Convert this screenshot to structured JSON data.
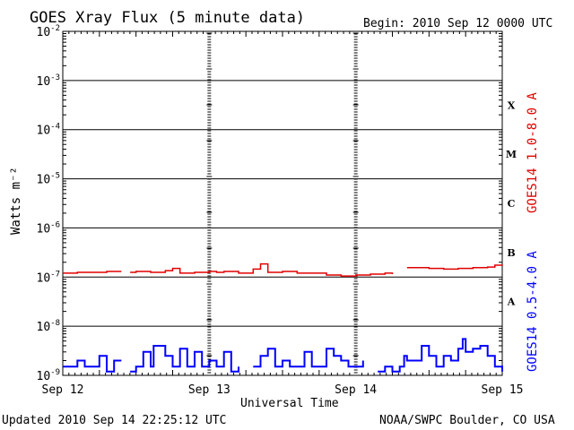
{
  "header": {
    "title": "GOES Xray Flux (5 minute data)",
    "begin": "Begin:  2010 Sep 12 0000 UTC"
  },
  "footer": {
    "updated": "Updated 2010 Sep 14 22:25:12 UTC",
    "credit": "NOAA/SWPC Boulder, CO USA"
  },
  "chart_data": {
    "type": "line",
    "title": "GOES Xray Flux (5 minute data)",
    "xlabel": "Universal Time",
    "ylabel": "Watts m⁻²",
    "y_scale": "log",
    "ylim": [
      1e-09,
      0.01
    ],
    "xlim": [
      "2010-09-12 00:00",
      "2010-09-15 00:00"
    ],
    "grid": true,
    "x_ticks": [
      "Sep 12",
      "Sep 13",
      "Sep 14",
      "Sep 15"
    ],
    "y_ticks": [
      {
        "value": 0.01,
        "base": "10",
        "exp": "-2"
      },
      {
        "value": 0.001,
        "base": "10",
        "exp": "-3"
      },
      {
        "value": 0.0001,
        "base": "10",
        "exp": "-4"
      },
      {
        "value": 1e-05,
        "base": "10",
        "exp": "-5"
      },
      {
        "value": 1e-06,
        "base": "10",
        "exp": "-6"
      },
      {
        "value": 1e-07,
        "base": "10",
        "exp": "-7"
      },
      {
        "value": 1e-08,
        "base": "10",
        "exp": "-8"
      },
      {
        "value": 1e-09,
        "base": "10",
        "exp": "-9"
      }
    ],
    "flare_classes": [
      {
        "label": "X",
        "lo": 0.0001,
        "hi": 0.001
      },
      {
        "label": "M",
        "lo": 1e-05,
        "hi": 0.0001
      },
      {
        "label": "C",
        "lo": 1e-06,
        "hi": 1e-05
      },
      {
        "label": "B",
        "lo": 1e-07,
        "hi": 1e-06
      },
      {
        "label": "A",
        "lo": 1e-08,
        "hi": 1e-07
      }
    ],
    "series": [
      {
        "name": "GOES14 1.0-8.0 A",
        "color": "#e00000",
        "x_days": [
          0.0,
          0.1,
          0.2,
          0.3,
          0.4,
          0.44,
          0.46,
          0.5,
          0.6,
          0.7,
          0.75,
          0.8,
          0.9,
          1.0,
          1.05,
          1.1,
          1.2,
          1.3,
          1.35,
          1.4,
          1.5,
          1.6,
          1.7,
          1.8,
          1.9,
          2.0,
          2.1,
          2.2,
          2.25,
          2.3,
          2.35,
          2.4,
          2.5,
          2.6,
          2.7,
          2.8,
          2.9,
          2.95,
          3.0
        ],
        "y": [
          1.2e-07,
          1.25e-07,
          1.25e-07,
          1.3e-07,
          1.3e-07,
          null,
          1.25e-07,
          1.3e-07,
          1.25e-07,
          1.35e-07,
          1.5e-07,
          1.2e-07,
          1.25e-07,
          1.3e-07,
          1.25e-07,
          1.3e-07,
          1.2e-07,
          1.45e-07,
          1.85e-07,
          1.25e-07,
          1.3e-07,
          1.2e-07,
          1.2e-07,
          1.1e-07,
          1.05e-07,
          1.1e-07,
          1.15e-07,
          1.2e-07,
          1.15e-07,
          null,
          1.55e-07,
          1.55e-07,
          1.5e-07,
          1.45e-07,
          1.5e-07,
          1.55e-07,
          1.6e-07,
          1.75e-07,
          1.7e-07
        ]
      },
      {
        "name": "GOES14 0.5-4.0 A",
        "color": "#0000ff",
        "x_days": [
          0.0,
          0.05,
          0.1,
          0.15,
          0.18,
          0.2,
          0.25,
          0.3,
          0.35,
          0.4,
          0.44,
          0.46,
          0.5,
          0.55,
          0.6,
          0.62,
          0.7,
          0.75,
          0.8,
          0.85,
          0.9,
          0.95,
          1.0,
          1.05,
          1.1,
          1.15,
          1.2,
          1.25,
          1.3,
          1.35,
          1.4,
          1.45,
          1.5,
          1.55,
          1.6,
          1.65,
          1.7,
          1.8,
          1.85,
          1.9,
          1.95,
          2.0,
          2.05,
          2.1,
          2.15,
          2.2,
          2.25,
          2.3,
          2.33,
          2.35,
          2.4,
          2.45,
          2.5,
          2.55,
          2.6,
          2.65,
          2.7,
          2.73,
          2.75,
          2.8,
          2.85,
          2.9,
          2.95,
          3.0
        ],
        "y": [
          1.5e-09,
          1.5e-09,
          2e-09,
          1.5e-09,
          1.5e-09,
          1.5e-09,
          2.5e-09,
          1.2e-09,
          2e-09,
          2e-09,
          null,
          1.2e-09,
          1.5e-09,
          3e-09,
          1.5e-09,
          4e-09,
          2.5e-09,
          1.5e-09,
          3.5e-09,
          1.5e-09,
          3e-09,
          1.5e-09,
          2e-09,
          1.5e-09,
          3e-09,
          1.2e-09,
          1.5e-09,
          null,
          1.5e-09,
          2.5e-09,
          3.5e-09,
          1.5e-09,
          2e-09,
          1.5e-09,
          1.5e-09,
          3e-09,
          1.5e-09,
          3.5e-09,
          2.5e-09,
          2e-09,
          1.5e-09,
          1.5e-09,
          2e-09,
          null,
          1.2e-09,
          1.5e-09,
          1.2e-09,
          1.5e-09,
          2.5e-09,
          2e-09,
          2e-09,
          4e-09,
          2.5e-09,
          1.5e-09,
          2.5e-09,
          2e-09,
          3.5e-09,
          5.5e-09,
          3e-09,
          3.5e-09,
          4e-09,
          2.5e-09,
          1.5e-09,
          1.2e-09
        ]
      }
    ]
  }
}
